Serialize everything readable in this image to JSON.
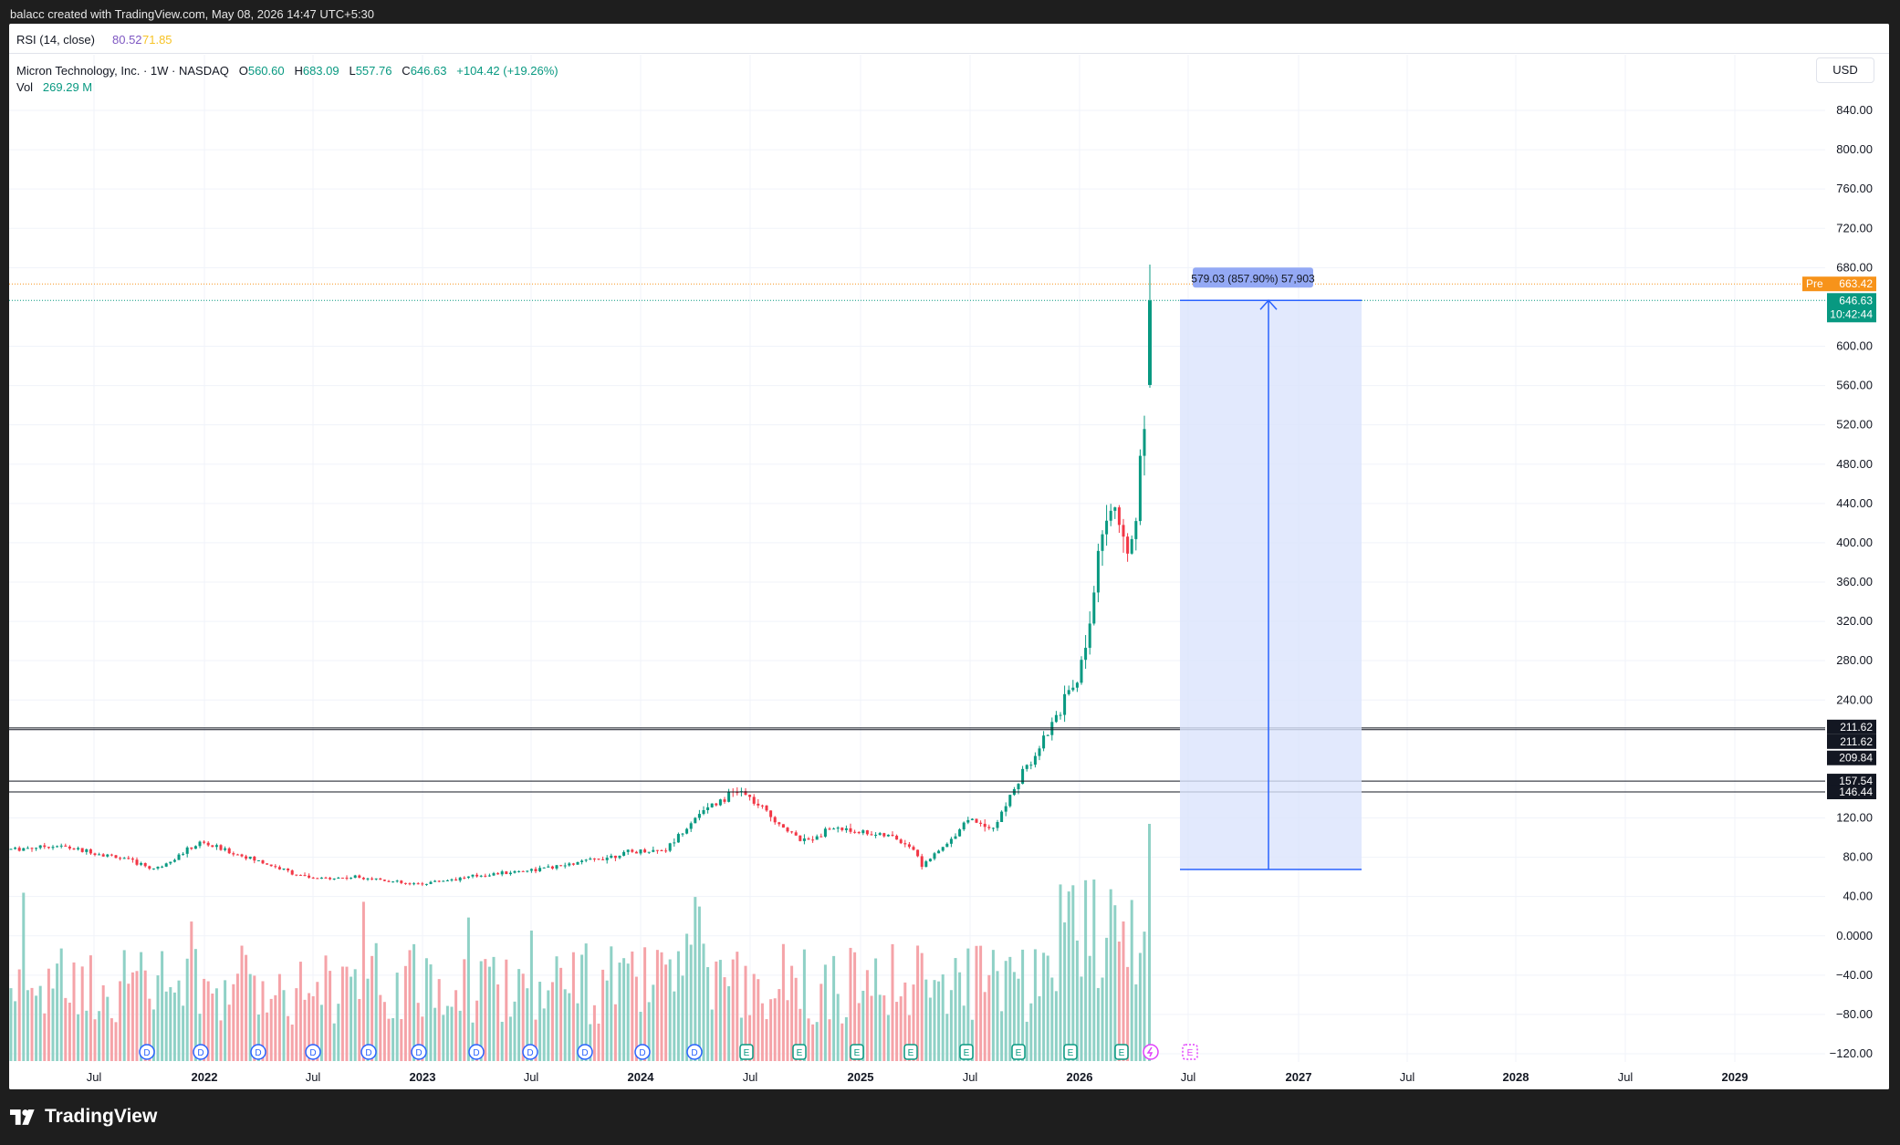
{
  "header": {
    "caption": "balacc created with TradingView.com, May 08, 2026 14:47 UTC+5:30"
  },
  "rsi": {
    "label": "RSI (14, close)",
    "value1": "80.52",
    "value2": "71.85",
    "color1": "#7e57c2",
    "color2": "#f7c325"
  },
  "symbol": {
    "name": "Micron Technology, Inc. · 1W · NASDAQ",
    "open_label": "O",
    "open": "560.60",
    "high_label": "H",
    "high": "683.09",
    "low_label": "L",
    "low": "557.76",
    "close_label": "C",
    "close": "646.63",
    "change": "+104.42 (+19.26%)"
  },
  "volume": {
    "label": "Vol",
    "value": "269.29 M"
  },
  "currency": "USD",
  "price_axis": {
    "ticks": [
      "840.00",
      "800.00",
      "760.00",
      "720.00",
      "680.00",
      "600.00",
      "560.00",
      "520.00",
      "480.00",
      "440.00",
      "400.00",
      "360.00",
      "320.00",
      "280.00",
      "240.00",
      "120.00",
      "80.00",
      "40.00",
      "0.0000",
      "−40.00",
      "−80.00",
      "−120.00"
    ],
    "tick_values": [
      840,
      800,
      760,
      720,
      680,
      600,
      560,
      520,
      480,
      440,
      400,
      360,
      320,
      280,
      240,
      120,
      80,
      40,
      0,
      -40,
      -80,
      -120
    ],
    "pre_badge": {
      "tag": "Pre",
      "value": "663.42",
      "color": "#f7931a"
    },
    "last_badge": {
      "value": "646.63",
      "countdown": "10:42:44",
      "color": "#089981"
    },
    "level_badges": [
      "211.62",
      "211.62",
      "209.84",
      "157.54",
      "146.44"
    ]
  },
  "time_axis": {
    "labels": [
      {
        "text": "Jul",
        "year": false
      },
      {
        "text": "2022",
        "year": true
      },
      {
        "text": "Jul",
        "year": false
      },
      {
        "text": "2023",
        "year": true
      },
      {
        "text": "Jul",
        "year": false
      },
      {
        "text": "2024",
        "year": true
      },
      {
        "text": "Jul",
        "year": false
      },
      {
        "text": "2025",
        "year": true
      },
      {
        "text": "Jul",
        "year": false
      },
      {
        "text": "2026",
        "year": true
      },
      {
        "text": "Jul",
        "year": false
      },
      {
        "text": "2027",
        "year": true
      },
      {
        "text": "Jul",
        "year": false
      },
      {
        "text": "2028",
        "year": true
      },
      {
        "text": "Jul",
        "year": false
      },
      {
        "text": "2029",
        "year": true
      }
    ]
  },
  "horizontal_levels": [
    211.62,
    209.84,
    157.54,
    146.44
  ],
  "measure": {
    "label": "579.03 (857.90%) 57,903",
    "from_price": 67.6,
    "to_price": 646.63,
    "fill": "#dbe4fd",
    "stroke": "#2962ff"
  },
  "event_markers": {
    "dividend_count": 11,
    "earnings_count": 9,
    "dividend_letter": "D",
    "earnings_letter": "E"
  },
  "colors": {
    "up": "#089981",
    "down": "#f23645",
    "vol_up": "#8fd1c6",
    "vol_down": "#f5a3a8",
    "grid": "#f0f3fa"
  },
  "chart_data": {
    "type": "candlestick",
    "title": "Micron Technology, Inc. · 1W · NASDAQ",
    "ylim": [
      -120,
      840
    ],
    "x": [
      "Jul 2021",
      "2022",
      "Jul 2022",
      "2023",
      "Jul 2023",
      "2024",
      "Jul 2024",
      "2025",
      "Jul 2025",
      "2026",
      "May 2026"
    ],
    "close_approx": [
      88,
      95,
      58,
      54,
      68,
      88,
      150,
      95,
      125,
      300,
      646.63
    ],
    "last_ohlc": {
      "open": 560.6,
      "high": 683.09,
      "low": 557.76,
      "close": 646.63
    }
  },
  "footer": {
    "brand": "TradingView"
  }
}
